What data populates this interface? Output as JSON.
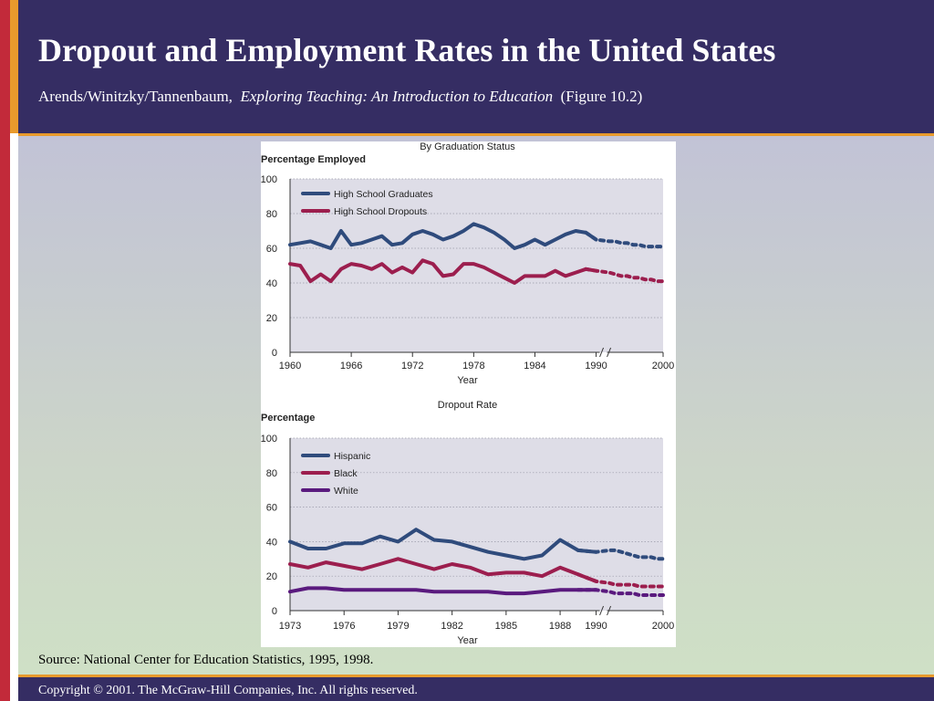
{
  "slide": {
    "title": "Dropout and Employment Rates in the United States",
    "subtitle_authors": "Arends/Winitzky/Tannenbaum,",
    "subtitle_book": "Exploring Teaching:  An Introduction to Education",
    "subtitle_figure": "(Figure 10.2)",
    "source": "Source: National Center for Education Statistics, 1995, 1998.",
    "footer": "Copyright © 2001. The McGraw-Hill Companies, Inc. All rights reserved."
  },
  "colors": {
    "header_bg": "#352d63",
    "accent_orange": "#e89a2c",
    "accent_red": "#c22a3a",
    "plot_bg": "#dedde7",
    "blue": "#2f4b7c",
    "crimson": "#9c1e4e",
    "purple": "#5a1a7e"
  },
  "chart_data": [
    {
      "type": "line",
      "title": "By Graduation Status",
      "ylabel": "Percentage Employed",
      "xlabel": "Year",
      "ylim": [
        0,
        100
      ],
      "yticks": [
        "0",
        "20",
        "40",
        "60",
        "80",
        "100"
      ],
      "xticks": [
        {
          "v": 1960,
          "t": "1960"
        },
        {
          "v": 1966,
          "t": "1966"
        },
        {
          "v": 1972,
          "t": "1972"
        },
        {
          "v": 1978,
          "t": "1978"
        },
        {
          "v": 1984,
          "t": "1984"
        },
        {
          "v": 1990,
          "t": "1990"
        },
        {
          "v": 2000,
          "t": "2000"
        }
      ],
      "projection_start": 1990,
      "axis_break": true,
      "legend": "top-left",
      "grid": true,
      "series": [
        {
          "name": "High School Graduates",
          "color": "#2f4b7c",
          "x": [
            1960,
            1961,
            1962,
            1963,
            1964,
            1965,
            1966,
            1967,
            1968,
            1969,
            1970,
            1971,
            1972,
            1973,
            1974,
            1975,
            1976,
            1977,
            1978,
            1979,
            1980,
            1981,
            1982,
            1983,
            1984,
            1985,
            1986,
            1987,
            1988,
            1989,
            1990,
            1991,
            1992,
            1993,
            1994,
            1995,
            1996,
            1997,
            1998,
            1999,
            2000
          ],
          "values": [
            62,
            63,
            64,
            62,
            60,
            70,
            62,
            63,
            65,
            67,
            62,
            63,
            68,
            70,
            68,
            65,
            67,
            70,
            74,
            72,
            69,
            65,
            60,
            62,
            65,
            62,
            65,
            68,
            70,
            69,
            65,
            64,
            64,
            63,
            63,
            62,
            62,
            61,
            61,
            61,
            61
          ]
        },
        {
          "name": "High School Dropouts",
          "color": "#9c1e4e",
          "x": [
            1960,
            1961,
            1962,
            1963,
            1964,
            1965,
            1966,
            1967,
            1968,
            1969,
            1970,
            1971,
            1972,
            1973,
            1974,
            1975,
            1976,
            1977,
            1978,
            1979,
            1980,
            1981,
            1982,
            1983,
            1984,
            1985,
            1986,
            1987,
            1988,
            1989,
            1990,
            1991,
            1992,
            1993,
            1994,
            1995,
            1996,
            1997,
            1998,
            1999,
            2000
          ],
          "values": [
            51,
            50,
            41,
            45,
            41,
            48,
            51,
            50,
            48,
            51,
            46,
            49,
            46,
            53,
            51,
            44,
            45,
            51,
            51,
            49,
            46,
            43,
            40,
            44,
            44,
            44,
            47,
            44,
            46,
            48,
            47,
            46,
            45,
            44,
            44,
            43,
            43,
            42,
            42,
            41,
            41
          ]
        }
      ]
    },
    {
      "type": "line",
      "title": "Dropout Rate",
      "ylabel": "Percentage",
      "xlabel": "Year",
      "ylim": [
        0,
        100
      ],
      "yticks": [
        "0",
        "20",
        "40",
        "60",
        "80",
        "100"
      ],
      "xticks": [
        {
          "v": 1973,
          "t": "1973"
        },
        {
          "v": 1976,
          "t": "1976"
        },
        {
          "v": 1979,
          "t": "1979"
        },
        {
          "v": 1982,
          "t": "1982"
        },
        {
          "v": 1985,
          "t": "1985"
        },
        {
          "v": 1988,
          "t": "1988"
        },
        {
          "v": 1990,
          "t": "1990"
        },
        {
          "v": 2000,
          "t": "2000"
        }
      ],
      "projection_start": 1990,
      "axis_break": true,
      "legend": "top-left",
      "grid": true,
      "series": [
        {
          "name": "Hispanic",
          "color": "#2f4b7c",
          "x": [
            1973,
            1974,
            1975,
            1976,
            1977,
            1978,
            1979,
            1980,
            1981,
            1982,
            1983,
            1984,
            1985,
            1986,
            1987,
            1988,
            1989,
            1990,
            1991,
            1992,
            1993,
            1994,
            1995,
            1996,
            1997,
            1998,
            1999,
            2000
          ],
          "values": [
            40,
            36,
            36,
            39,
            39,
            43,
            40,
            47,
            41,
            40,
            37,
            34,
            32,
            30,
            32,
            41,
            35,
            34,
            35,
            35,
            34,
            33,
            32,
            31,
            31,
            31,
            30,
            30
          ]
        },
        {
          "name": "Black",
          "color": "#9c1e4e",
          "x": [
            1973,
            1974,
            1975,
            1976,
            1977,
            1978,
            1979,
            1980,
            1981,
            1982,
            1983,
            1984,
            1985,
            1986,
            1987,
            1988,
            1989,
            1990,
            1991,
            1992,
            1993,
            1994,
            1995,
            1996,
            1997,
            1998,
            1999,
            2000
          ],
          "values": [
            27,
            25,
            28,
            26,
            24,
            27,
            30,
            27,
            24,
            27,
            25,
            21,
            22,
            22,
            20,
            25,
            21,
            17,
            16,
            15,
            15,
            15,
            15,
            14,
            14,
            14,
            14,
            14
          ]
        },
        {
          "name": "White",
          "color": "#5a1a7e",
          "x": [
            1973,
            1974,
            1975,
            1976,
            1977,
            1978,
            1979,
            1980,
            1981,
            1982,
            1983,
            1984,
            1985,
            1986,
            1987,
            1988,
            1989,
            1990,
            1991,
            1992,
            1993,
            1994,
            1995,
            1996,
            1997,
            1998,
            1999,
            2000
          ],
          "values": [
            11,
            13,
            13,
            12,
            12,
            12,
            12,
            12,
            11,
            11,
            11,
            11,
            10,
            10,
            11,
            12,
            12,
            12,
            11,
            10,
            10,
            10,
            10,
            9,
            9,
            9,
            9,
            9
          ]
        }
      ]
    }
  ]
}
